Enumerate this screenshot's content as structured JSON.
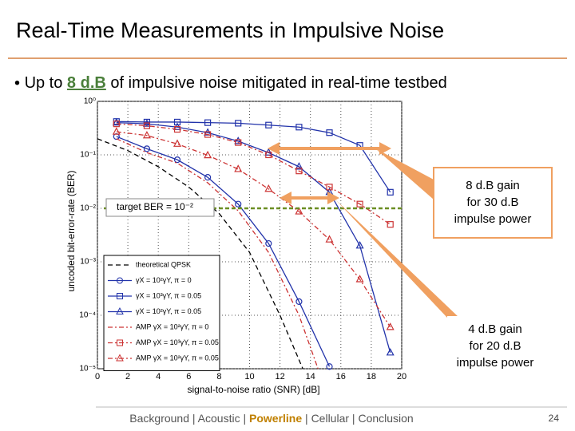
{
  "slide": {
    "title": "Real-Time Measurements in Impulsive Noise",
    "bullet": [
      "Up to ",
      "8 d.B",
      " of impulsive noise mitigated in real-time testbed"
    ],
    "callouts": [
      [
        "8 d.B gain",
        "for 30 d.B",
        "impulse power"
      ],
      [
        "4 d.B gain",
        "for 20 d.B",
        "impulse power"
      ]
    ],
    "nav": [
      "Background",
      "Acoustic",
      "Powerline",
      "Cellular",
      "Conclusion"
    ],
    "nav_active": "Powerline",
    "page": "24"
  },
  "chart_data": {
    "type": "line",
    "log_y": true,
    "grid": true,
    "xlabel": "signal-to-noise ratio (SNR) [dB]",
    "ylabel": "uncoded bit-error-rate (BER)",
    "annotation": "target BER = 10⁻²",
    "target": 0.01,
    "target_color": "#6b8e23",
    "xlim": [
      0,
      20
    ],
    "xticks": [
      0,
      2,
      4,
      6,
      8,
      10,
      12,
      14,
      16,
      18,
      20
    ],
    "ylim": [
      1e-05,
      1
    ],
    "yticks": [
      {
        "value": 1e-05,
        "label": "10⁻⁵"
      },
      {
        "value": 0.0001,
        "label": "10⁻⁴"
      },
      {
        "value": 0.001,
        "label": "10⁻³"
      },
      {
        "value": 0.01,
        "label": "10⁻²"
      },
      {
        "value": 0.1,
        "label": "10⁻¹"
      },
      {
        "value": 1,
        "label": "10⁰"
      }
    ],
    "series": [
      {
        "name": "theoretical QPSK",
        "color": "#000000",
        "style": "dashed",
        "marker": "none",
        "x": [
          0,
          2,
          4,
          6,
          8,
          10,
          12,
          13.5
        ],
        "values": [
          0.2,
          0.12,
          0.06,
          0.025,
          0.008,
          0.0015,
          0.0001,
          1e-05
        ]
      },
      {
        "name": "γX = 10²γY, π = 0",
        "color": "#2233aa",
        "style": "solid",
        "marker": "circle",
        "x": [
          1.25,
          3.25,
          5.25,
          7.25,
          9.25,
          11.25,
          13.25,
          15.25
        ],
        "values": [
          0.22,
          0.13,
          0.081,
          0.038,
          0.012,
          0.0022,
          0.00018,
          1.1e-05
        ]
      },
      {
        "name": "γX = 10³γY, π = 0.05",
        "color": "#2233aa",
        "style": "solid",
        "marker": "square",
        "x": [
          1.25,
          3.25,
          5.25,
          7.25,
          9.25,
          11.25,
          13.25,
          15.25,
          17.25,
          19.25
        ],
        "values": [
          0.42,
          0.41,
          0.41,
          0.4,
          0.39,
          0.36,
          0.33,
          0.26,
          0.15,
          0.02
        ]
      },
      {
        "name": "γX = 10²γY, π = 0.05",
        "color": "#2233aa",
        "style": "solid",
        "marker": "triangle",
        "x": [
          1.25,
          3.25,
          5.25,
          7.25,
          9.25,
          11.25,
          13.25,
          15.25,
          17.25,
          19.25
        ],
        "values": [
          0.4,
          0.38,
          0.33,
          0.26,
          0.18,
          0.11,
          0.06,
          0.02,
          0.002,
          2e-05
        ]
      },
      {
        "name": "AMP γX = 10²γY, π = 0",
        "color": "#cc3333",
        "style": "dashdot",
        "marker": "none",
        "x": [
          1.25,
          3.25,
          5.25,
          7.25,
          9.25,
          11.25,
          13.25,
          14.5
        ],
        "values": [
          0.2,
          0.11,
          0.07,
          0.03,
          0.009,
          0.0015,
          0.0001,
          1e-05
        ]
      },
      {
        "name": "AMP γX = 10³γY, π = 0.05",
        "color": "#cc3333",
        "style": "dashdot",
        "marker": "square",
        "x": [
          1.25,
          3.25,
          5.25,
          7.25,
          9.25,
          11.25,
          13.25,
          15.25,
          17.25,
          19.25
        ],
        "values": [
          0.38,
          0.35,
          0.3,
          0.24,
          0.17,
          0.1,
          0.05,
          0.025,
          0.012,
          0.005
        ]
      },
      {
        "name": "AMP γX = 10²γY, π = 0.05",
        "color": "#cc3333",
        "style": "dashdot",
        "marker": "triangle",
        "x": [
          1.25,
          3.25,
          5.25,
          7.25,
          9.25,
          11.25,
          13.25,
          15.25,
          17.25,
          19.25
        ],
        "values": [
          0.27,
          0.23,
          0.16,
          0.098,
          0.054,
          0.023,
          0.0087,
          0.0026,
          0.00047,
          6e-05
        ]
      }
    ]
  }
}
